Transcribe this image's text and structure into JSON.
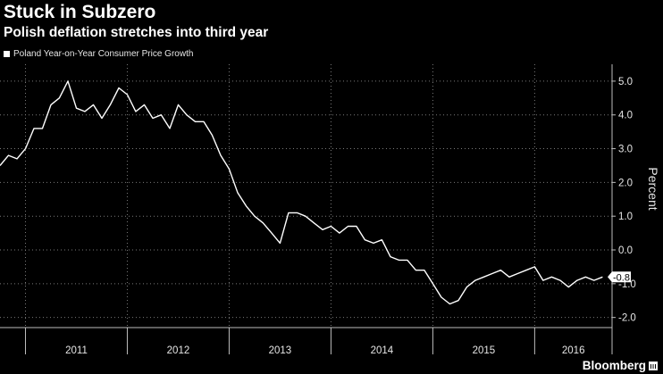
{
  "header": {
    "title": "Stuck in Subzero",
    "subtitle": "Polish deflation stretches into third year"
  },
  "legend": {
    "label": "Poland Year-on-Year Consumer Price Growth"
  },
  "branding": {
    "name": "Bloomberg"
  },
  "colors": {
    "background": "#000000",
    "line": "#ffffff",
    "grid": "#7a7a7a",
    "text": "#e6e6e6"
  },
  "chart_data": {
    "type": "line",
    "title": "Stuck in Subzero",
    "subtitle": "Polish deflation stretches into third year",
    "xlabel": "",
    "ylabel": "Percent",
    "ylim": [
      -2.3,
      5.5
    ],
    "yticks": [
      5.0,
      4.0,
      3.0,
      2.0,
      1.0,
      0.0,
      -1.0,
      -2.0
    ],
    "ytick_labels": [
      "5.0",
      "4.0",
      "3.0",
      "2.0",
      "1.0",
      "0.0",
      "-1.0",
      "-2.0"
    ],
    "x_categories": [
      "2011",
      "2012",
      "2013",
      "2014",
      "2015",
      "2016"
    ],
    "x_start": 2010.75,
    "x_end": 2016.76,
    "grid": true,
    "y_axis_position": "right",
    "end_label": "-0.8",
    "series": [
      {
        "name": "Poland Year-on-Year Consumer Price Growth",
        "color": "#ffffff",
        "points": [
          [
            2010.75,
            2.5
          ],
          [
            2010.833,
            2.8
          ],
          [
            2010.917,
            2.7
          ],
          [
            2011.0,
            3.0
          ],
          [
            2011.083,
            3.6
          ],
          [
            2011.167,
            3.6
          ],
          [
            2011.25,
            4.3
          ],
          [
            2011.333,
            4.5
          ],
          [
            2011.417,
            5.0
          ],
          [
            2011.5,
            4.2
          ],
          [
            2011.583,
            4.1
          ],
          [
            2011.667,
            4.3
          ],
          [
            2011.75,
            3.9
          ],
          [
            2011.833,
            4.3
          ],
          [
            2011.917,
            4.8
          ],
          [
            2012.0,
            4.6
          ],
          [
            2012.083,
            4.1
          ],
          [
            2012.167,
            4.3
          ],
          [
            2012.25,
            3.9
          ],
          [
            2012.333,
            4.0
          ],
          [
            2012.417,
            3.6
          ],
          [
            2012.5,
            4.3
          ],
          [
            2012.583,
            4.0
          ],
          [
            2012.667,
            3.8
          ],
          [
            2012.75,
            3.8
          ],
          [
            2012.833,
            3.4
          ],
          [
            2012.917,
            2.8
          ],
          [
            2013.0,
            2.4
          ],
          [
            2013.083,
            1.7
          ],
          [
            2013.167,
            1.3
          ],
          [
            2013.25,
            1.0
          ],
          [
            2013.333,
            0.8
          ],
          [
            2013.417,
            0.5
          ],
          [
            2013.5,
            0.2
          ],
          [
            2013.583,
            1.1
          ],
          [
            2013.667,
            1.1
          ],
          [
            2013.75,
            1.0
          ],
          [
            2013.833,
            0.8
          ],
          [
            2013.917,
            0.6
          ],
          [
            2014.0,
            0.7
          ],
          [
            2014.083,
            0.5
          ],
          [
            2014.167,
            0.7
          ],
          [
            2014.25,
            0.7
          ],
          [
            2014.333,
            0.3
          ],
          [
            2014.417,
            0.2
          ],
          [
            2014.5,
            0.3
          ],
          [
            2014.583,
            -0.2
          ],
          [
            2014.667,
            -0.3
          ],
          [
            2014.75,
            -0.3
          ],
          [
            2014.833,
            -0.6
          ],
          [
            2014.917,
            -0.6
          ],
          [
            2015.0,
            -1.0
          ],
          [
            2015.083,
            -1.4
          ],
          [
            2015.167,
            -1.6
          ],
          [
            2015.25,
            -1.5
          ],
          [
            2015.333,
            -1.1
          ],
          [
            2015.417,
            -0.9
          ],
          [
            2015.5,
            -0.8
          ],
          [
            2015.583,
            -0.7
          ],
          [
            2015.667,
            -0.6
          ],
          [
            2015.75,
            -0.8
          ],
          [
            2015.833,
            -0.7
          ],
          [
            2015.917,
            -0.6
          ],
          [
            2016.0,
            -0.5
          ],
          [
            2016.083,
            -0.9
          ],
          [
            2016.167,
            -0.8
          ],
          [
            2016.25,
            -0.9
          ],
          [
            2016.333,
            -1.1
          ],
          [
            2016.417,
            -0.9
          ],
          [
            2016.5,
            -0.8
          ],
          [
            2016.583,
            -0.9
          ],
          [
            2016.667,
            -0.8
          ]
        ]
      }
    ]
  }
}
